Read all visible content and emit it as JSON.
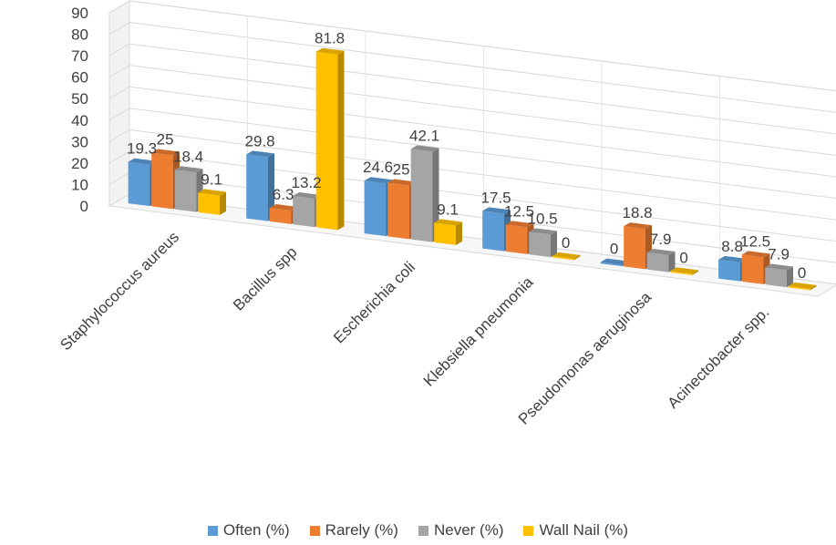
{
  "chart_data": {
    "type": "bar",
    "style": "3d-clustered-column",
    "categories": [
      "Staphylococcus aureus",
      "Bacillus spp",
      "Escherichia coli",
      "Klebsiella pneumonia",
      "Pseudomonas  aeruginosa",
      "Acinectobacter spp."
    ],
    "series": [
      {
        "name": "Often (%)",
        "color": "#5B9BD5",
        "values": [
          19.3,
          29.8,
          24.6,
          17.5,
          0,
          8.8
        ]
      },
      {
        "name": "Rarely (%)",
        "color": "#ED7D31",
        "values": [
          25,
          6.3,
          25,
          12.5,
          18.8,
          12.5
        ]
      },
      {
        "name": "Never (%)",
        "color": "#A5A5A5",
        "values": [
          18.4,
          13.2,
          42.1,
          10.5,
          7.9,
          7.9
        ]
      },
      {
        "name": "Wall Nail (%)",
        "color": "#FFC000",
        "values": [
          9.1,
          81.8,
          9.1,
          0,
          0,
          0
        ]
      }
    ],
    "value_labels": [
      [
        "19.3",
        "29.8",
        "24.6",
        "17.5",
        "0",
        "8.8"
      ],
      [
        "25",
        "6.3",
        "25",
        "12.5",
        "18.8",
        "12.5"
      ],
      [
        "18.4",
        "13.2",
        "42.1",
        "10.5",
        "7.9",
        "7.9"
      ],
      [
        "9.1",
        "81.8",
        "9.1",
        "0",
        "0",
        "0"
      ]
    ],
    "yticks": [
      "0",
      "10",
      "20",
      "30",
      "40",
      "50",
      "60",
      "70",
      "80",
      "90"
    ],
    "ylim": [
      0,
      90
    ],
    "grid": true,
    "legend_position": "bottom"
  }
}
